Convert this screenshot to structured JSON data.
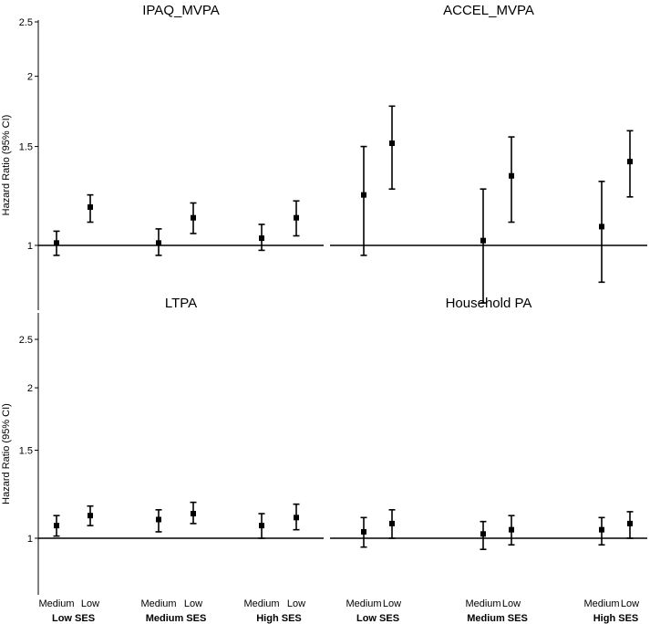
{
  "chart_data": [
    {
      "type": "scatter",
      "title": "IPAQ_MVPA",
      "ylabel": "Hazard Ratio (95% CI)",
      "yticks": [
        1,
        1.5,
        2,
        2.5
      ],
      "ylim": [
        0.8,
        2.55
      ],
      "reference_line": 1,
      "groups": [
        "Low SES",
        "Medium SES",
        "High SES"
      ],
      "categories": [
        "Medium",
        "Low"
      ],
      "points": [
        {
          "group": "Low SES",
          "category": "Medium",
          "hr": 1.01,
          "lower": 0.96,
          "upper": 1.06
        },
        {
          "group": "Low SES",
          "category": "Low",
          "hr": 1.17,
          "lower": 1.1,
          "upper": 1.23
        },
        {
          "group": "Medium SES",
          "category": "Medium",
          "hr": 1.01,
          "lower": 0.96,
          "upper": 1.07
        },
        {
          "group": "Medium SES",
          "category": "Low",
          "hr": 1.12,
          "lower": 1.05,
          "upper": 1.19
        },
        {
          "group": "High SES",
          "category": "Medium",
          "hr": 1.03,
          "lower": 0.98,
          "upper": 1.09
        },
        {
          "group": "High SES",
          "category": "Low",
          "hr": 1.12,
          "lower": 1.04,
          "upper": 1.2
        }
      ]
    },
    {
      "type": "scatter",
      "title": "ACCEL_MVPA",
      "ylabel": "",
      "yticks": [],
      "ylim": [
        0.8,
        2.55
      ],
      "reference_line": 1,
      "groups": [
        "Low SES",
        "Medium SES",
        "High SES"
      ],
      "categories": [
        "Medium",
        "Low"
      ],
      "points": [
        {
          "group": "Low SES",
          "category": "Medium",
          "hr": 1.23,
          "lower": 0.96,
          "upper": 1.5
        },
        {
          "group": "Low SES",
          "category": "Low",
          "hr": 1.52,
          "lower": 1.26,
          "upper": 1.77
        },
        {
          "group": "Medium SES",
          "category": "Medium",
          "hr": 1.02,
          "lower": 0.79,
          "upper": 1.26
        },
        {
          "group": "Medium SES",
          "category": "Low",
          "hr": 1.33,
          "lower": 1.1,
          "upper": 1.56
        },
        {
          "group": "High SES",
          "category": "Medium",
          "hr": 1.08,
          "lower": 0.86,
          "upper": 1.3
        },
        {
          "group": "High SES",
          "category": "Low",
          "hr": 1.41,
          "lower": 1.22,
          "upper": 1.6
        }
      ]
    },
    {
      "type": "scatter",
      "title": "LTPA",
      "ylabel": "Hazard Ratio (95% CI)",
      "yticks": [
        1,
        1.5,
        2,
        2.5
      ],
      "ylim": [
        0.8,
        2.55
      ],
      "reference_line": 1,
      "groups": [
        "Low SES",
        "Medium SES",
        "High SES"
      ],
      "categories": [
        "Medium",
        "Low"
      ],
      "points": [
        {
          "group": "Low SES",
          "category": "Medium",
          "hr": 1.06,
          "lower": 1.01,
          "upper": 1.11
        },
        {
          "group": "Low SES",
          "category": "Low",
          "hr": 1.11,
          "lower": 1.06,
          "upper": 1.16
        },
        {
          "group": "Medium SES",
          "category": "Medium",
          "hr": 1.09,
          "lower": 1.03,
          "upper": 1.14
        },
        {
          "group": "Medium SES",
          "category": "Low",
          "hr": 1.12,
          "lower": 1.07,
          "upper": 1.18
        },
        {
          "group": "High SES",
          "category": "Medium",
          "hr": 1.06,
          "lower": 1.0,
          "upper": 1.12
        },
        {
          "group": "High SES",
          "category": "Low",
          "hr": 1.1,
          "lower": 1.04,
          "upper": 1.17
        }
      ]
    },
    {
      "type": "scatter",
      "title": "Household PA",
      "ylabel": "",
      "yticks": [],
      "ylim": [
        0.8,
        2.55
      ],
      "reference_line": 1,
      "groups": [
        "Low SES",
        "Medium SES",
        "High SES"
      ],
      "categories": [
        "Medium",
        "Low"
      ],
      "points": [
        {
          "group": "Low SES",
          "category": "Medium",
          "hr": 1.03,
          "lower": 0.96,
          "upper": 1.1
        },
        {
          "group": "Low SES",
          "category": "Low",
          "hr": 1.07,
          "lower": 1.0,
          "upper": 1.14
        },
        {
          "group": "Medium SES",
          "category": "Medium",
          "hr": 1.02,
          "lower": 0.95,
          "upper": 1.08
        },
        {
          "group": "Medium SES",
          "category": "Low",
          "hr": 1.04,
          "lower": 0.97,
          "upper": 1.11
        },
        {
          "group": "High SES",
          "category": "Medium",
          "hr": 1.04,
          "lower": 0.97,
          "upper": 1.1
        },
        {
          "group": "High SES",
          "category": "Low",
          "hr": 1.07,
          "lower": 1.0,
          "upper": 1.13
        }
      ]
    }
  ]
}
